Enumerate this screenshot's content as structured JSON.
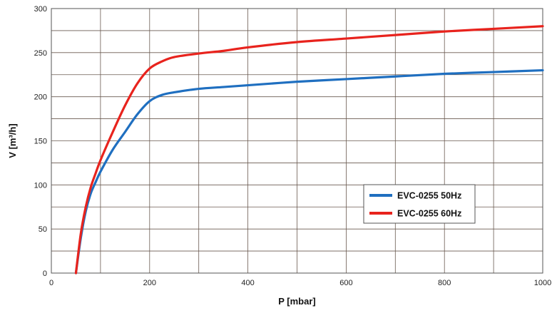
{
  "chart_data": {
    "type": "line",
    "xlabel": "P [mbar]",
    "ylabel": "V [m³/h]",
    "xlim": [
      0,
      1000
    ],
    "ylim": [
      0,
      300
    ],
    "x_ticks": [
      0,
      200,
      400,
      600,
      800,
      1000
    ],
    "y_ticks": [
      0,
      50,
      100,
      150,
      200,
      250,
      300
    ],
    "x_grid_step": 100,
    "y_grid_step": 25,
    "grid": true,
    "legend_position": "bottom-right",
    "series": [
      {
        "name": "EVC-0255 50Hz",
        "color": "#1f6fc0",
        "x": [
          50,
          60,
          70,
          80,
          90,
          100,
          125,
          150,
          175,
          200,
          225,
          250,
          300,
          350,
          400,
          500,
          600,
          700,
          800,
          900,
          1000
        ],
        "y": [
          0,
          40,
          70,
          90,
          103,
          115,
          140,
          160,
          180,
          195,
          202,
          205,
          209,
          211,
          213,
          217,
          220,
          223,
          226,
          228,
          230
        ]
      },
      {
        "name": "EVC-0255 60Hz",
        "color": "#e8231d",
        "x": [
          50,
          60,
          70,
          80,
          90,
          100,
          125,
          150,
          175,
          200,
          225,
          250,
          300,
          350,
          400,
          500,
          600,
          700,
          800,
          900,
          1000
        ],
        "y": [
          0,
          45,
          75,
          97,
          113,
          128,
          160,
          190,
          215,
          232,
          240,
          245,
          249,
          252,
          256,
          262,
          266,
          270,
          274,
          277,
          280
        ]
      }
    ]
  }
}
